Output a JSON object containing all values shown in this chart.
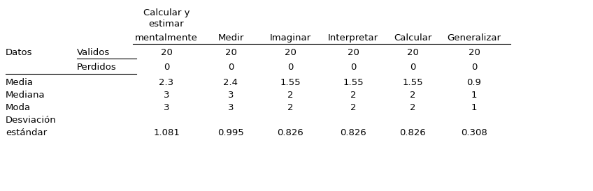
{
  "col_header_line1": "Calcular y",
  "col_header_line2": "estimar",
  "col_headers": [
    "mentalmente",
    "Medir",
    "Imaginar",
    "Interpretar",
    "Calcular",
    "Generalizar"
  ],
  "row_labels_col1": [
    "Datos",
    "",
    "Media",
    "Mediana",
    "Moda",
    "Desviación",
    "estándar"
  ],
  "row_labels_col2": [
    "Validos",
    "Perdidos",
    "",
    "",
    "",
    "",
    ""
  ],
  "data_values": [
    [
      "20",
      "20",
      "20",
      "20",
      "20",
      "20"
    ],
    [
      "0",
      "0",
      "0",
      "0",
      "0",
      "0"
    ],
    [
      "2.3",
      "2.4",
      "1.55",
      "1.55",
      "1.55",
      "0.9"
    ],
    [
      "3",
      "3",
      "2",
      "2",
      "2",
      "1"
    ],
    [
      "3",
      "3",
      "2",
      "2",
      "2",
      "1"
    ],
    [
      "",
      "",
      "",
      "",
      "",
      ""
    ],
    [
      "1.081",
      "0.995",
      "0.826",
      "0.826",
      "0.826",
      "0.308"
    ]
  ],
  "bg_color": "#ffffff",
  "text_color": "#000000",
  "font_size": 9.5
}
